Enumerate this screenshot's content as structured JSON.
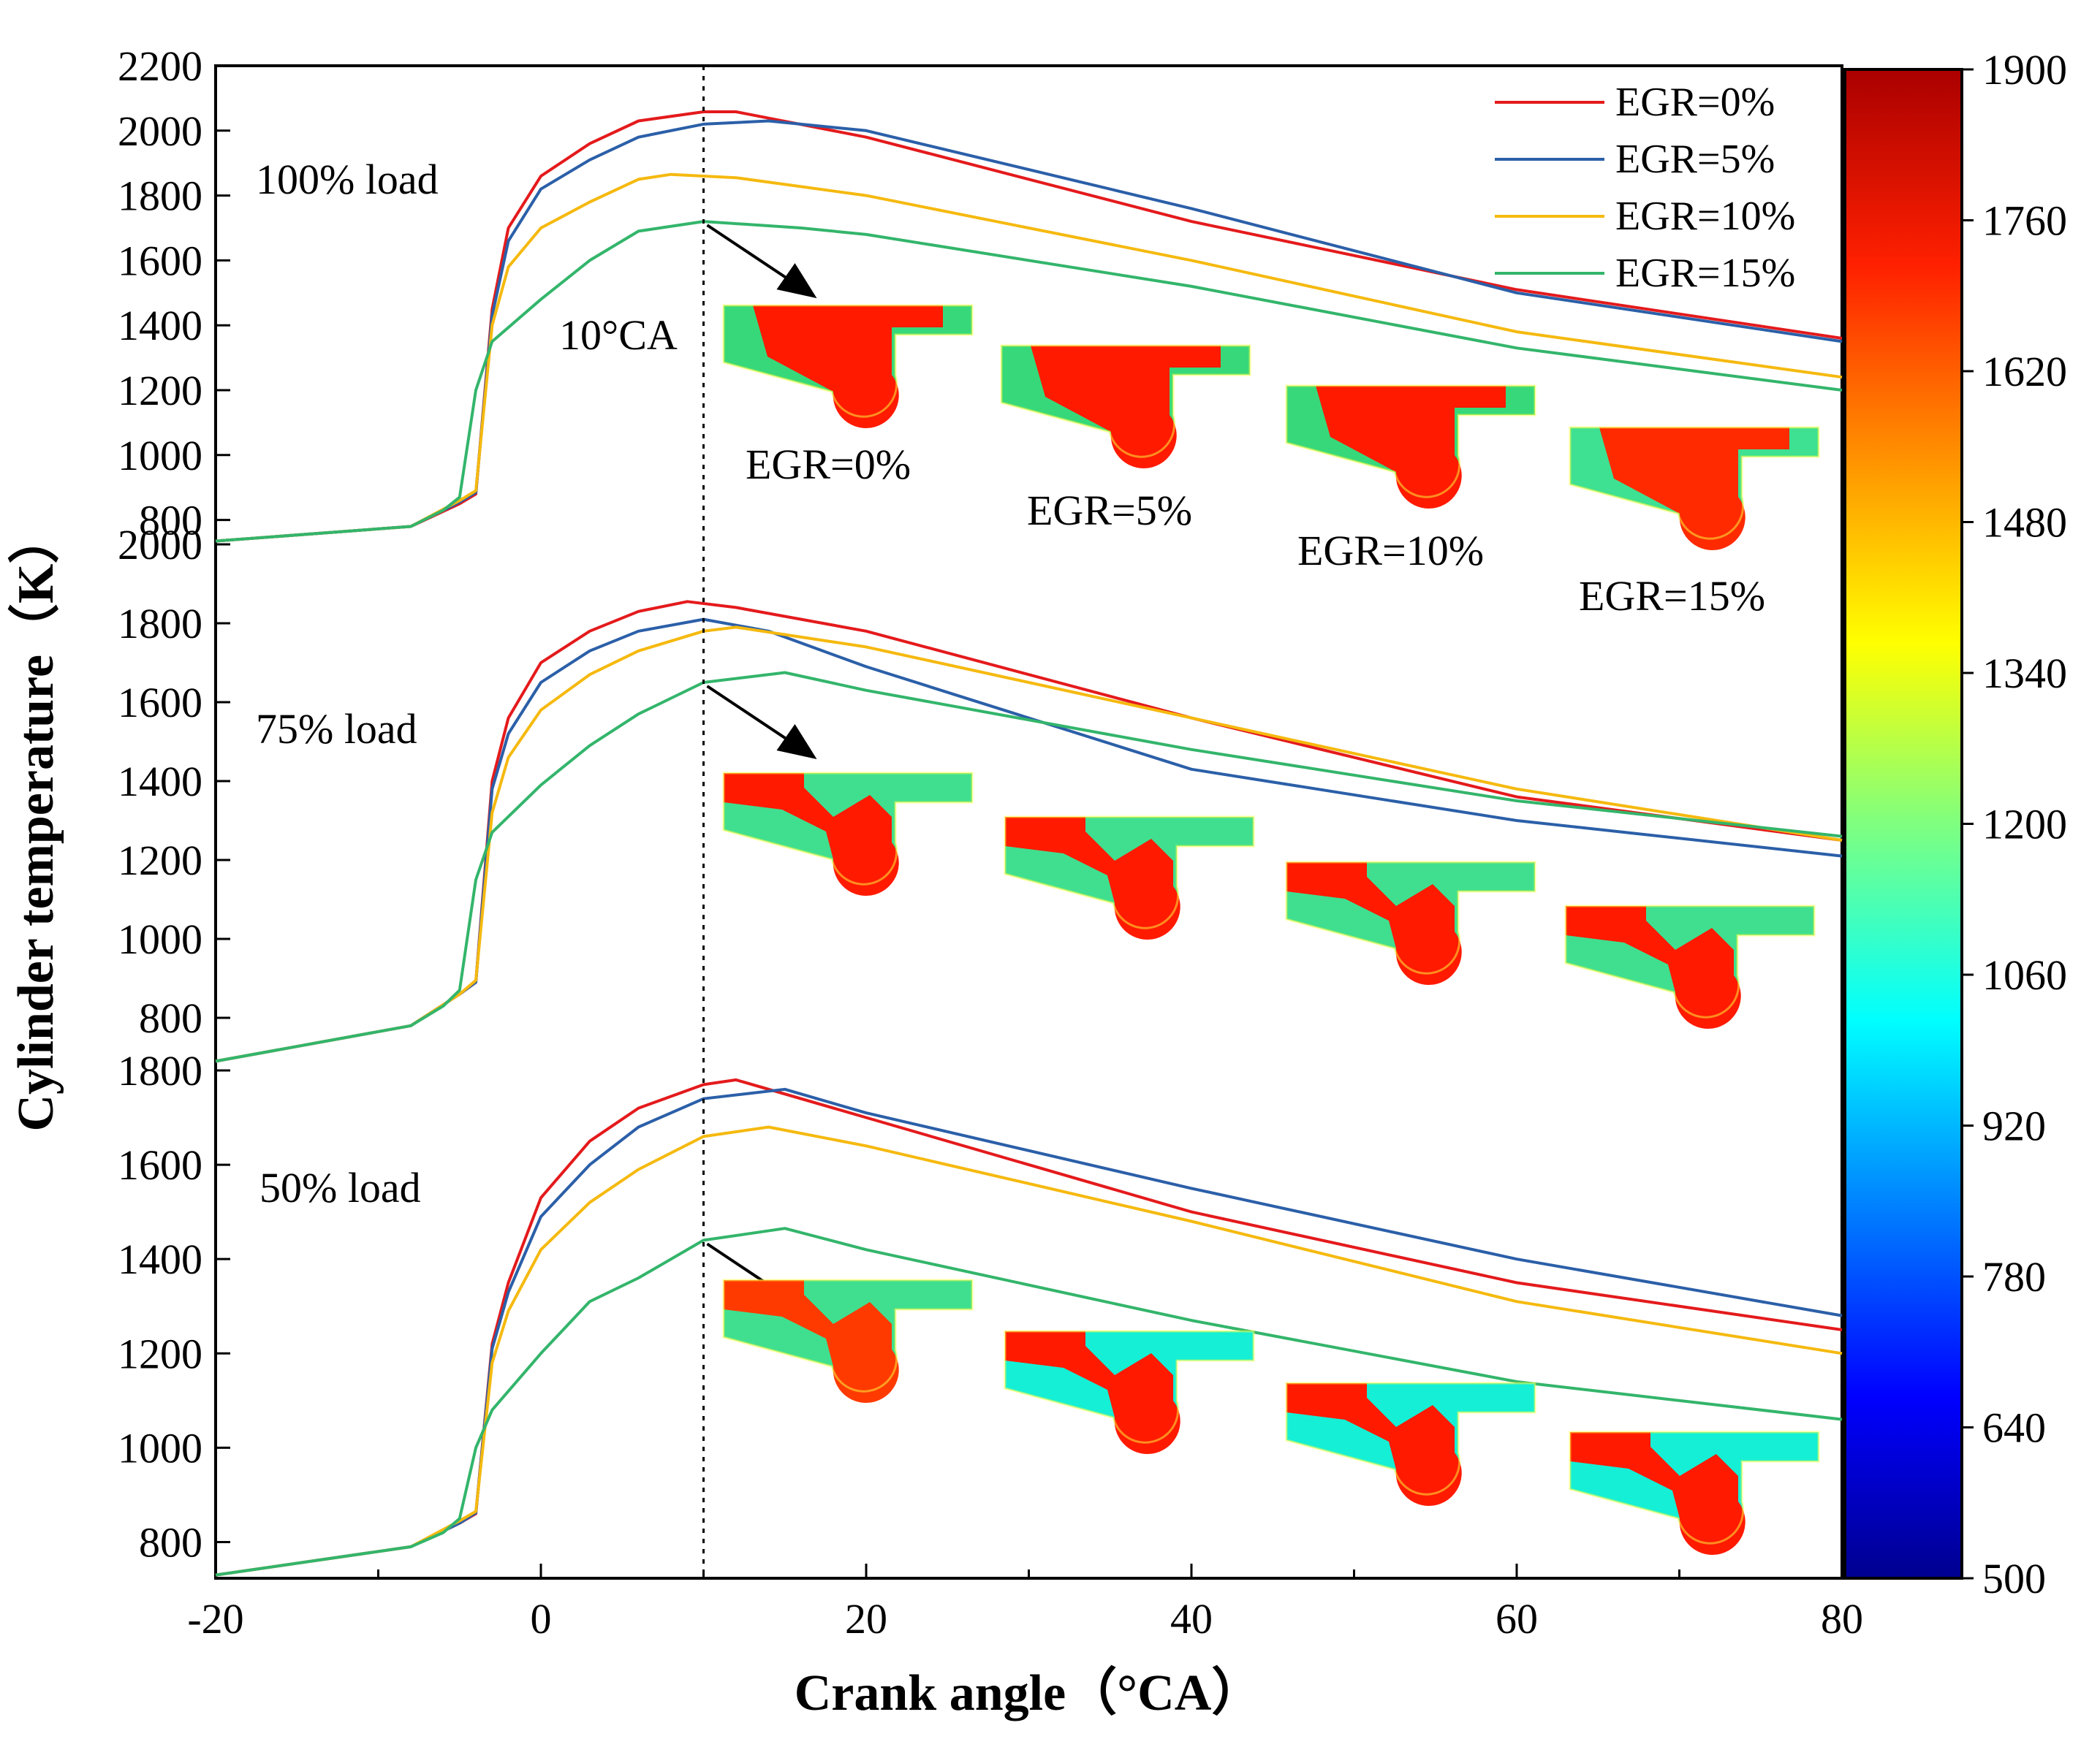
{
  "chart_data": {
    "type": "line",
    "xlabel": "Crank angle（°CA）",
    "ylabel": "Cylinder temperature（K）",
    "xlim": [
      -20,
      80
    ],
    "xticks": [
      -20,
      0,
      20,
      40,
      60,
      80
    ],
    "reference_line": {
      "x": 10,
      "label": "10°CA"
    },
    "colors": {
      "EGR=0%": "#e41a1c",
      "EGR=5%": "#2b5fa8",
      "EGR=10%": "#f5b90f",
      "EGR=15%": "#33b56b"
    },
    "legend": {
      "position": "top-right",
      "entries": [
        "EGR=0%",
        "EGR=5%",
        "EGR=10%",
        "EGR=15%"
      ]
    },
    "colorbar": {
      "min": 500,
      "max": 1900,
      "ticks": [
        500,
        640,
        780,
        920,
        1060,
        1200,
        1340,
        1480,
        1620,
        1760,
        1900
      ]
    },
    "contour_labels": [
      "EGR=0%",
      "EGR=5%",
      "EGR=10%",
      "EGR=15%"
    ],
    "panels": [
      {
        "label": "100% load",
        "ylim": [
          700,
          2200
        ],
        "yticks": [
          800,
          1000,
          1200,
          1400,
          1600,
          1800,
          2000,
          2200
        ],
        "series": [
          {
            "name": "EGR=0%",
            "points": [
              [
                -20,
                735
              ],
              [
                -8,
                780
              ],
              [
                -5,
                850
              ],
              [
                -4,
                880
              ],
              [
                -3,
                1450
              ],
              [
                -2,
                1700
              ],
              [
                0,
                1860
              ],
              [
                3,
                1960
              ],
              [
                6,
                2030
              ],
              [
                10,
                2058
              ],
              [
                12,
                2058
              ],
              [
                20,
                1980
              ],
              [
                40,
                1720
              ],
              [
                60,
                1510
              ],
              [
                80,
                1360
              ]
            ]
          },
          {
            "name": "EGR=5%",
            "points": [
              [
                -20,
                735
              ],
              [
                -8,
                780
              ],
              [
                -5,
                855
              ],
              [
                -4,
                885
              ],
              [
                -3,
                1430
              ],
              [
                -2,
                1660
              ],
              [
                0,
                1820
              ],
              [
                3,
                1910
              ],
              [
                6,
                1980
              ],
              [
                10,
                2020
              ],
              [
                14,
                2030
              ],
              [
                20,
                2000
              ],
              [
                40,
                1760
              ],
              [
                60,
                1500
              ],
              [
                80,
                1350
              ]
            ]
          },
          {
            "name": "EGR=10%",
            "points": [
              [
                -20,
                735
              ],
              [
                -8,
                780
              ],
              [
                -5,
                860
              ],
              [
                -4,
                890
              ],
              [
                -3,
                1400
              ],
              [
                -2,
                1580
              ],
              [
                0,
                1700
              ],
              [
                3,
                1780
              ],
              [
                6,
                1850
              ],
              [
                8,
                1865
              ],
              [
                12,
                1855
              ],
              [
                20,
                1800
              ],
              [
                40,
                1600
              ],
              [
                60,
                1380
              ],
              [
                80,
                1240
              ]
            ]
          },
          {
            "name": "EGR=15%",
            "points": [
              [
                -20,
                735
              ],
              [
                -8,
                780
              ],
              [
                -6,
                830
              ],
              [
                -5,
                870
              ],
              [
                -4,
                1200
              ],
              [
                -3,
                1350
              ],
              [
                0,
                1480
              ],
              [
                3,
                1600
              ],
              [
                6,
                1690
              ],
              [
                10,
                1720
              ],
              [
                16,
                1700
              ],
              [
                20,
                1680
              ],
              [
                40,
                1520
              ],
              [
                60,
                1330
              ],
              [
                80,
                1200
              ]
            ]
          }
        ]
      },
      {
        "label": "75% load",
        "ylim": [
          700,
          2000
        ],
        "yticks": [
          800,
          1000,
          1200,
          1400,
          1600,
          1800,
          2000
        ],
        "series": [
          {
            "name": "EGR=0%",
            "points": [
              [
                -20,
                690
              ],
              [
                -8,
                780
              ],
              [
                -5,
                860
              ],
              [
                -4,
                890
              ],
              [
                -3,
                1400
              ],
              [
                -2,
                1560
              ],
              [
                0,
                1700
              ],
              [
                3,
                1780
              ],
              [
                6,
                1830
              ],
              [
                9,
                1855
              ],
              [
                12,
                1840
              ],
              [
                20,
                1780
              ],
              [
                40,
                1560
              ],
              [
                60,
                1360
              ],
              [
                80,
                1250
              ]
            ]
          },
          {
            "name": "EGR=5%",
            "points": [
              [
                -20,
                690
              ],
              [
                -8,
                780
              ],
              [
                -5,
                860
              ],
              [
                -4,
                890
              ],
              [
                -3,
                1380
              ],
              [
                -2,
                1520
              ],
              [
                0,
                1650
              ],
              [
                3,
                1730
              ],
              [
                6,
                1780
              ],
              [
                10,
                1810
              ],
              [
                14,
                1780
              ],
              [
                20,
                1690
              ],
              [
                40,
                1430
              ],
              [
                60,
                1300
              ],
              [
                80,
                1210
              ]
            ]
          },
          {
            "name": "EGR=10%",
            "points": [
              [
                -20,
                690
              ],
              [
                -8,
                780
              ],
              [
                -5,
                860
              ],
              [
                -4,
                895
              ],
              [
                -3,
                1320
              ],
              [
                -2,
                1460
              ],
              [
                0,
                1580
              ],
              [
                3,
                1670
              ],
              [
                6,
                1730
              ],
              [
                10,
                1780
              ],
              [
                12,
                1790
              ],
              [
                20,
                1740
              ],
              [
                40,
                1560
              ],
              [
                60,
                1380
              ],
              [
                80,
                1250
              ]
            ]
          },
          {
            "name": "EGR=15%",
            "points": [
              [
                -20,
                690
              ],
              [
                -8,
                780
              ],
              [
                -6,
                830
              ],
              [
                -5,
                870
              ],
              [
                -4,
                1150
              ],
              [
                -3,
                1270
              ],
              [
                0,
                1390
              ],
              [
                3,
                1490
              ],
              [
                6,
                1570
              ],
              [
                10,
                1650
              ],
              [
                15,
                1675
              ],
              [
                20,
                1630
              ],
              [
                40,
                1480
              ],
              [
                60,
                1350
              ],
              [
                80,
                1260
              ]
            ]
          }
        ]
      },
      {
        "label": "50% load",
        "ylim": [
          700,
          1800
        ],
        "yticks": [
          800,
          1000,
          1200,
          1400,
          1600,
          1800
        ],
        "series": [
          {
            "name": "EGR=0%",
            "points": [
              [
                -20,
                730
              ],
              [
                -8,
                790
              ],
              [
                -5,
                840
              ],
              [
                -4,
                860
              ],
              [
                -3,
                1220
              ],
              [
                -2,
                1350
              ],
              [
                0,
                1530
              ],
              [
                3,
                1650
              ],
              [
                6,
                1720
              ],
              [
                10,
                1770
              ],
              [
                12,
                1780
              ],
              [
                20,
                1700
              ],
              [
                40,
                1500
              ],
              [
                60,
                1350
              ],
              [
                80,
                1250
              ]
            ]
          },
          {
            "name": "EGR=5%",
            "points": [
              [
                -20,
                730
              ],
              [
                -8,
                790
              ],
              [
                -5,
                840
              ],
              [
                -4,
                862
              ],
              [
                -3,
                1210
              ],
              [
                -2,
                1330
              ],
              [
                0,
                1490
              ],
              [
                3,
                1600
              ],
              [
                6,
                1680
              ],
              [
                10,
                1740
              ],
              [
                15,
                1760
              ],
              [
                20,
                1710
              ],
              [
                40,
                1550
              ],
              [
                60,
                1400
              ],
              [
                80,
                1280
              ]
            ]
          },
          {
            "name": "EGR=10%",
            "points": [
              [
                -20,
                730
              ],
              [
                -8,
                790
              ],
              [
                -5,
                845
              ],
              [
                -4,
                865
              ],
              [
                -3,
                1180
              ],
              [
                -2,
                1290
              ],
              [
                0,
                1420
              ],
              [
                3,
                1520
              ],
              [
                6,
                1590
              ],
              [
                10,
                1660
              ],
              [
                14,
                1680
              ],
              [
                20,
                1640
              ],
              [
                40,
                1480
              ],
              [
                60,
                1310
              ],
              [
                80,
                1200
              ]
            ]
          },
          {
            "name": "EGR=15%",
            "points": [
              [
                -20,
                730
              ],
              [
                -8,
                790
              ],
              [
                -6,
                820
              ],
              [
                -5,
                850
              ],
              [
                -4,
                1000
              ],
              [
                -3,
                1080
              ],
              [
                0,
                1200
              ],
              [
                3,
                1310
              ],
              [
                6,
                1360
              ],
              [
                10,
                1440
              ],
              [
                15,
                1465
              ],
              [
                20,
                1420
              ],
              [
                40,
                1270
              ],
              [
                60,
                1140
              ],
              [
                80,
                1060
              ]
            ]
          }
        ]
      }
    ]
  }
}
